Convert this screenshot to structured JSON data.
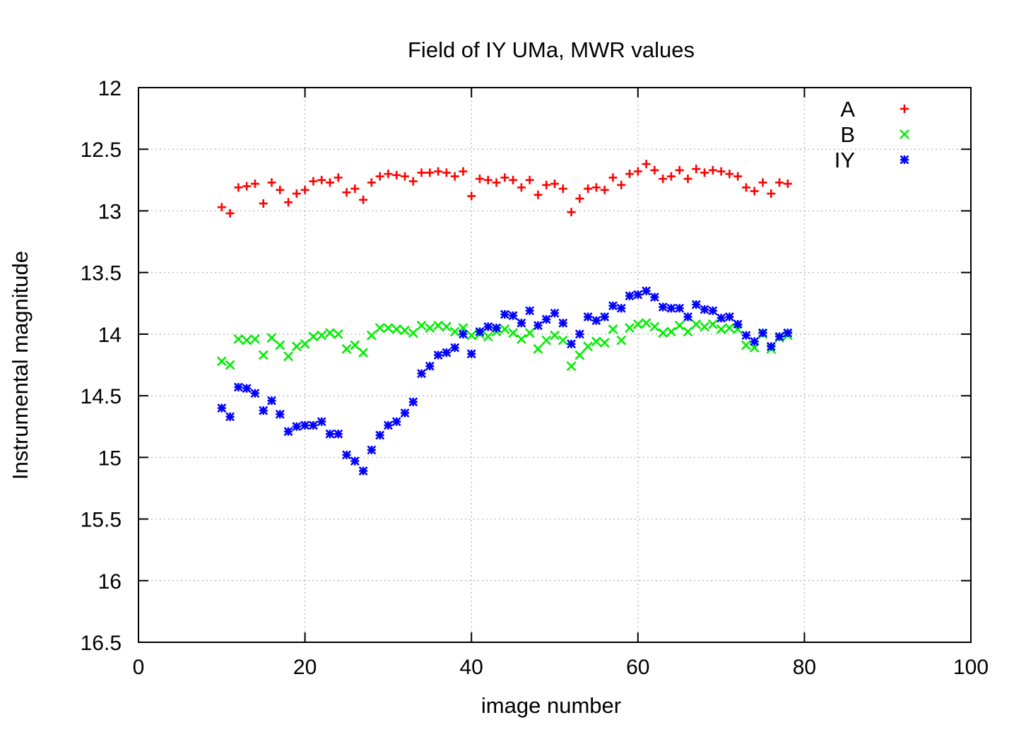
{
  "chart_data": {
    "type": "scatter",
    "title": "Field of IY UMa, MWR values",
    "xlabel": "image number",
    "ylabel": "Instrumental magnitude",
    "xlim": [
      0,
      100
    ],
    "ylim": [
      12,
      16.5
    ],
    "y_inverted": true,
    "grid": true,
    "legend_position": "top-right",
    "x_ticks": [
      "0",
      "20",
      "40",
      "60",
      "80",
      "100"
    ],
    "y_ticks": [
      "12",
      "12.5",
      "13",
      "13.5",
      "14",
      "14.5",
      "15",
      "15.5",
      "16",
      "16.5"
    ],
    "x": [
      10,
      11,
      12,
      13,
      14,
      15,
      16,
      17,
      18,
      19,
      20,
      21,
      22,
      23,
      24,
      25,
      26,
      27,
      28,
      29,
      30,
      31,
      32,
      33,
      34,
      35,
      36,
      37,
      38,
      39,
      40,
      41,
      42,
      43,
      44,
      45,
      46,
      47,
      48,
      49,
      50,
      51,
      52,
      53,
      54,
      55,
      56,
      57,
      58,
      59,
      60,
      61,
      62,
      63,
      64,
      65,
      66,
      67,
      68,
      69,
      70,
      71,
      72,
      73,
      74,
      75,
      76,
      77,
      78
    ],
    "series": [
      {
        "name": "A",
        "marker": "plus",
        "color": "#ff0000",
        "values": [
          12.97,
          13.02,
          12.81,
          12.8,
          12.78,
          12.94,
          12.77,
          12.83,
          12.93,
          12.86,
          12.83,
          12.76,
          12.75,
          12.77,
          12.73,
          12.85,
          12.82,
          12.91,
          12.77,
          12.72,
          12.7,
          12.71,
          12.72,
          12.76,
          12.69,
          12.69,
          12.68,
          12.69,
          12.72,
          12.68,
          12.88,
          12.74,
          12.75,
          12.77,
          12.73,
          12.75,
          12.81,
          12.75,
          12.87,
          12.79,
          12.78,
          12.82,
          13.01,
          12.9,
          12.82,
          12.81,
          12.83,
          12.73,
          12.79,
          12.7,
          12.68,
          12.62,
          12.67,
          12.74,
          12.72,
          12.67,
          12.74,
          12.66,
          12.69,
          12.67,
          12.68,
          12.7,
          12.72,
          12.81,
          12.84,
          12.77,
          12.86,
          12.77,
          12.78
        ]
      },
      {
        "name": "B",
        "marker": "x",
        "color": "#00ee00",
        "values": [
          14.22,
          14.25,
          14.04,
          14.05,
          14.04,
          14.17,
          14.03,
          14.09,
          14.18,
          14.1,
          14.08,
          14.02,
          14.01,
          13.99,
          14.0,
          14.12,
          14.09,
          14.15,
          14.01,
          13.95,
          13.95,
          13.96,
          13.97,
          13.99,
          13.93,
          13.95,
          13.93,
          13.94,
          13.98,
          13.95,
          14.01,
          14.0,
          14.02,
          13.98,
          13.96,
          13.99,
          14.04,
          13.99,
          14.12,
          14.05,
          14.01,
          14.05,
          14.26,
          14.17,
          14.1,
          14.06,
          14.07,
          13.96,
          14.05,
          13.95,
          13.92,
          13.91,
          13.94,
          13.99,
          13.98,
          13.93,
          13.98,
          13.92,
          13.94,
          13.92,
          13.96,
          13.95,
          13.96,
          14.09,
          14.11,
          14.0,
          14.12,
          14.03,
          14.01
        ]
      },
      {
        "name": "IY",
        "marker": "star",
        "color": "#0000ff",
        "values": [
          14.6,
          14.67,
          14.43,
          14.44,
          14.48,
          14.62,
          14.54,
          14.65,
          14.79,
          14.75,
          14.74,
          14.74,
          14.71,
          14.81,
          14.81,
          14.98,
          15.03,
          15.11,
          14.94,
          14.82,
          14.74,
          14.71,
          14.64,
          14.55,
          14.32,
          14.26,
          14.17,
          14.15,
          14.11,
          14.0,
          14.16,
          13.98,
          13.94,
          13.95,
          13.84,
          13.85,
          13.91,
          13.81,
          13.93,
          13.88,
          13.83,
          13.91,
          14.08,
          14.0,
          13.86,
          13.89,
          13.86,
          13.77,
          13.79,
          13.69,
          13.68,
          13.65,
          13.7,
          13.78,
          13.79,
          13.79,
          13.86,
          13.76,
          13.8,
          13.81,
          13.87,
          13.86,
          13.92,
          14.01,
          14.06,
          13.99,
          14.1,
          14.02,
          13.99
        ]
      }
    ]
  }
}
